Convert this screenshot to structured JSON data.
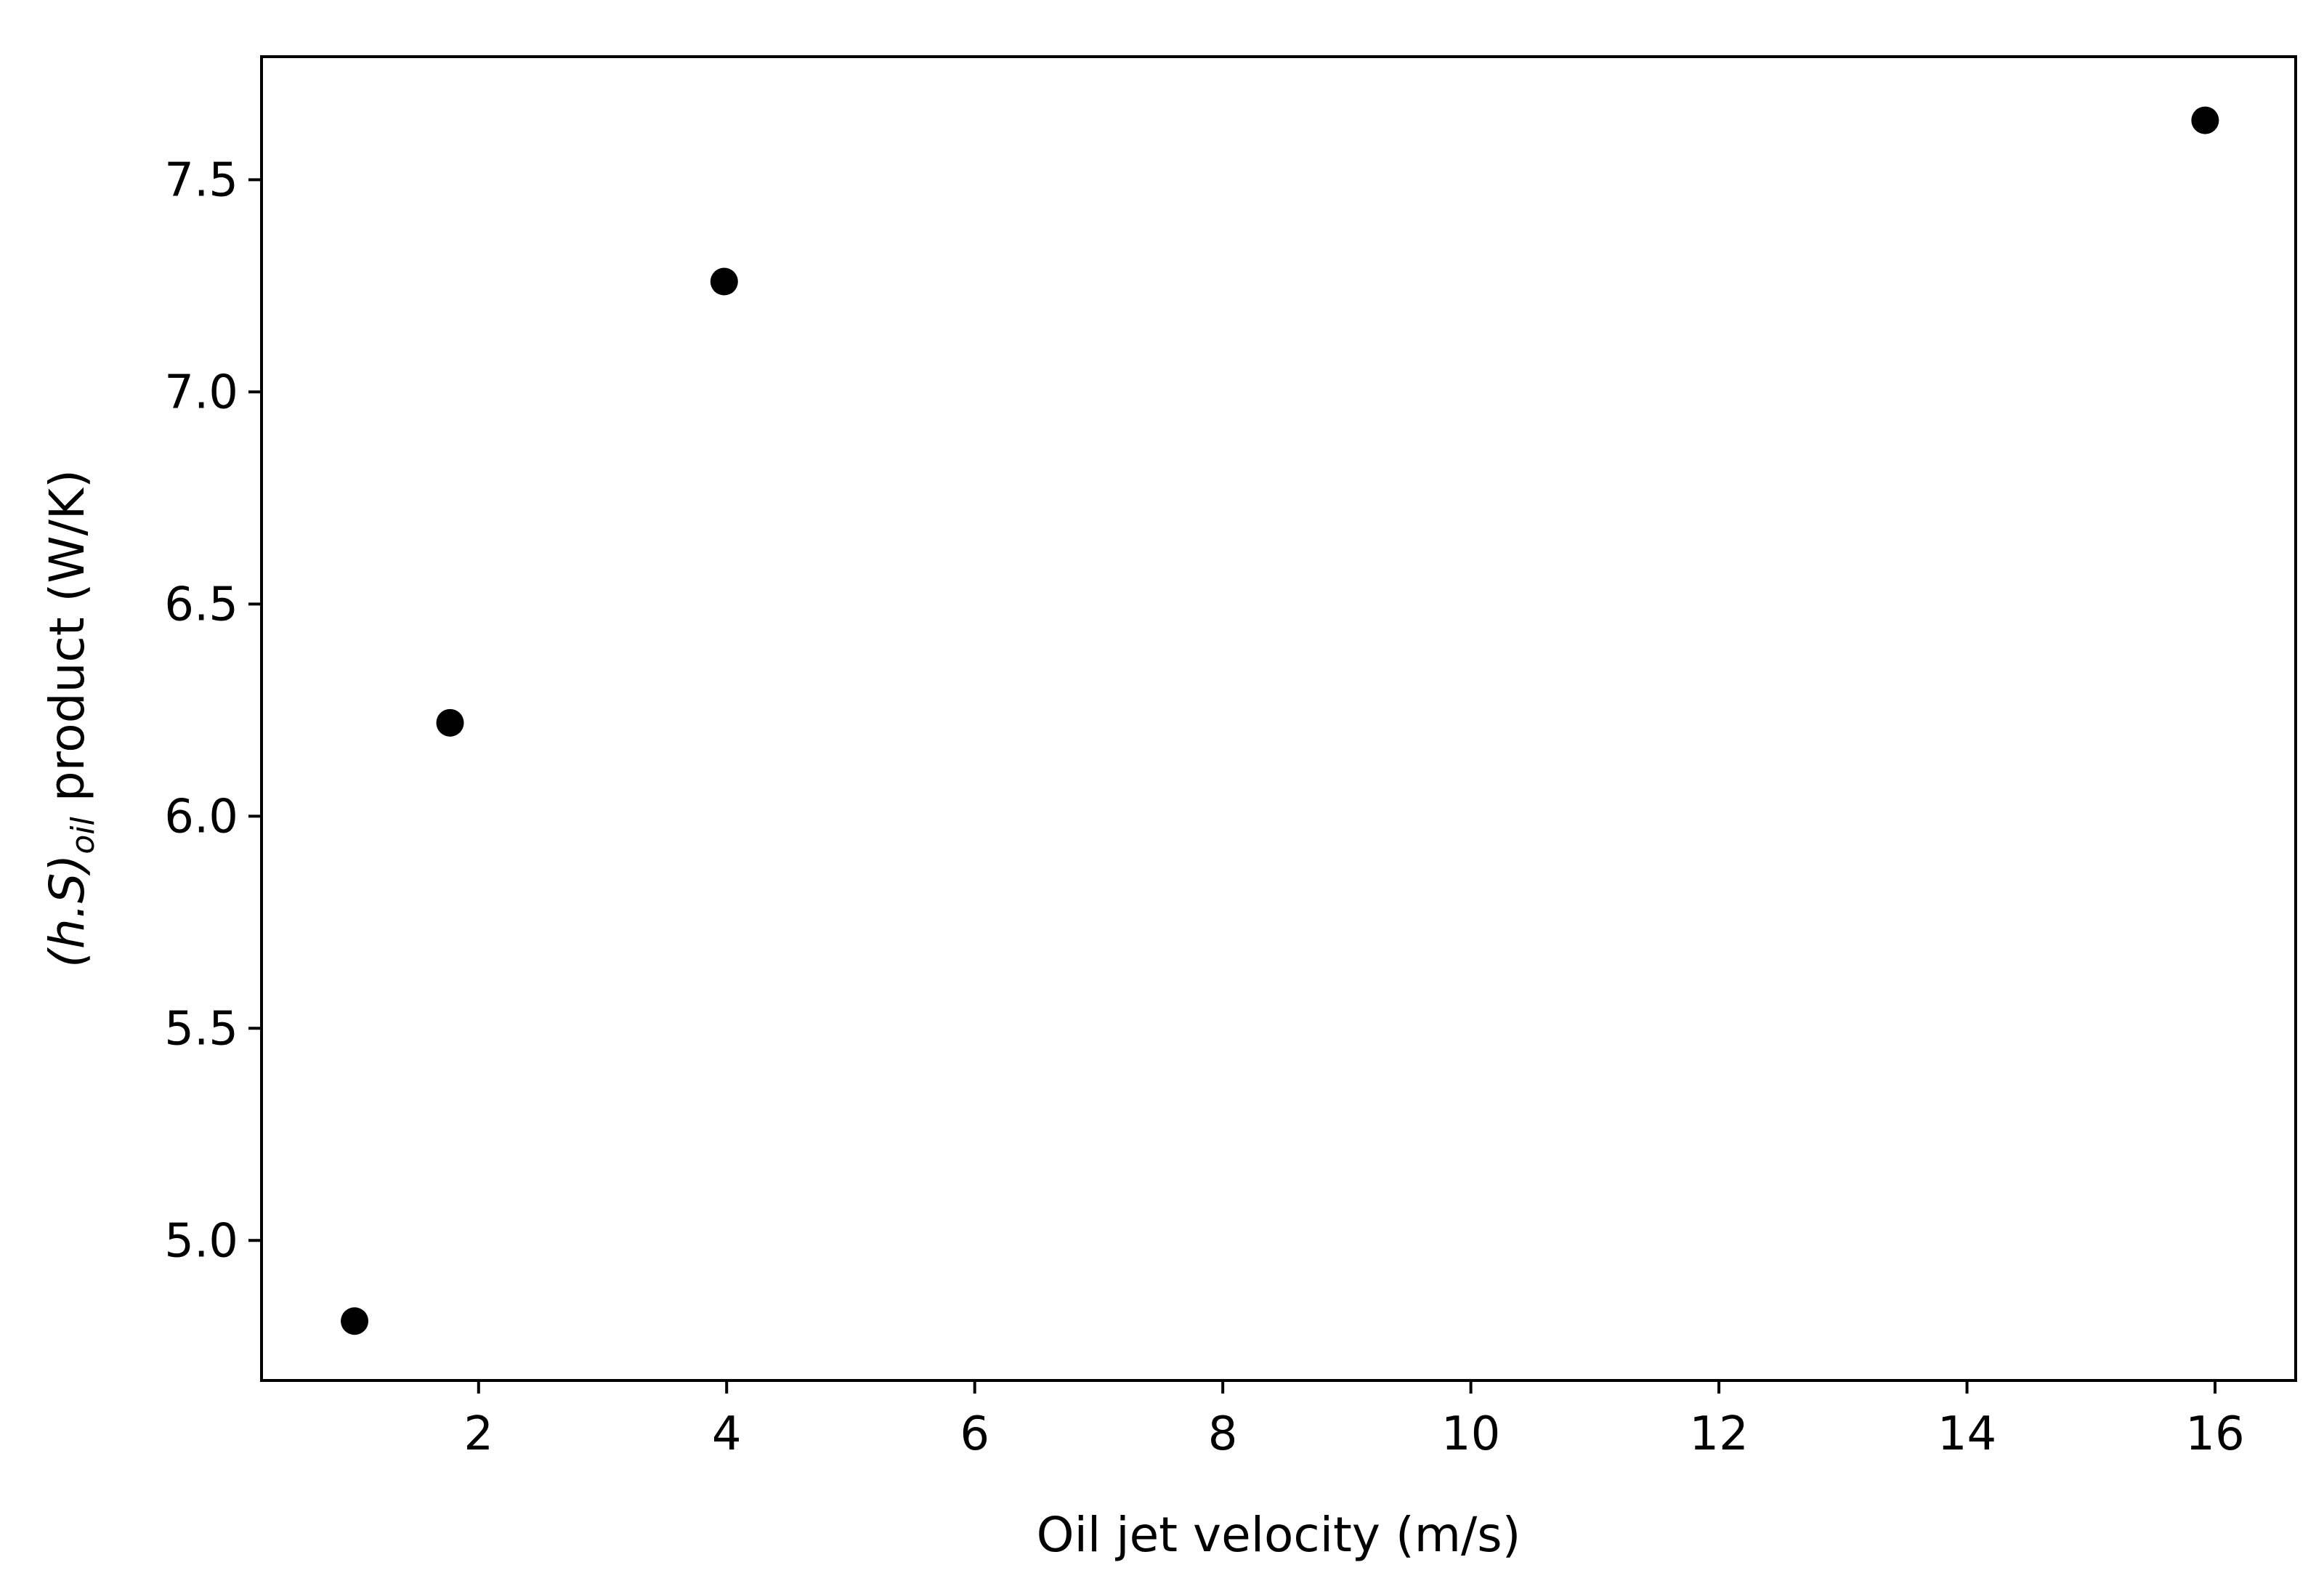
{
  "chart_data": {
    "type": "scatter",
    "title": "",
    "xlabel": "Oil jet velocity (m/s)",
    "ylabel": {
      "prefix": "(h.S)",
      "subscript": "oil",
      "suffix": " product (W/K)"
    },
    "xlim": [
      0.25,
      16.65
    ],
    "ylim": [
      4.67,
      7.79
    ],
    "x_ticks": [
      2,
      4,
      6,
      8,
      10,
      12,
      14,
      16
    ],
    "x_tick_labels": [
      "2",
      "4",
      "6",
      "8",
      "10",
      "12",
      "14",
      "16"
    ],
    "y_ticks": [
      5.0,
      5.5,
      6.0,
      6.5,
      7.0,
      7.5
    ],
    "y_tick_labels": [
      "5.0",
      "5.5",
      "6.0",
      "6.5",
      "7.0",
      "7.5"
    ],
    "grid": false,
    "legend": "none",
    "marker_color": "#000000",
    "series": [
      {
        "points": [
          {
            "x": 1.0,
            "y": 4.81
          },
          {
            "x": 1.77,
            "y": 6.22
          },
          {
            "x": 3.98,
            "y": 7.26
          },
          {
            "x": 15.92,
            "y": 7.64
          }
        ]
      }
    ]
  }
}
